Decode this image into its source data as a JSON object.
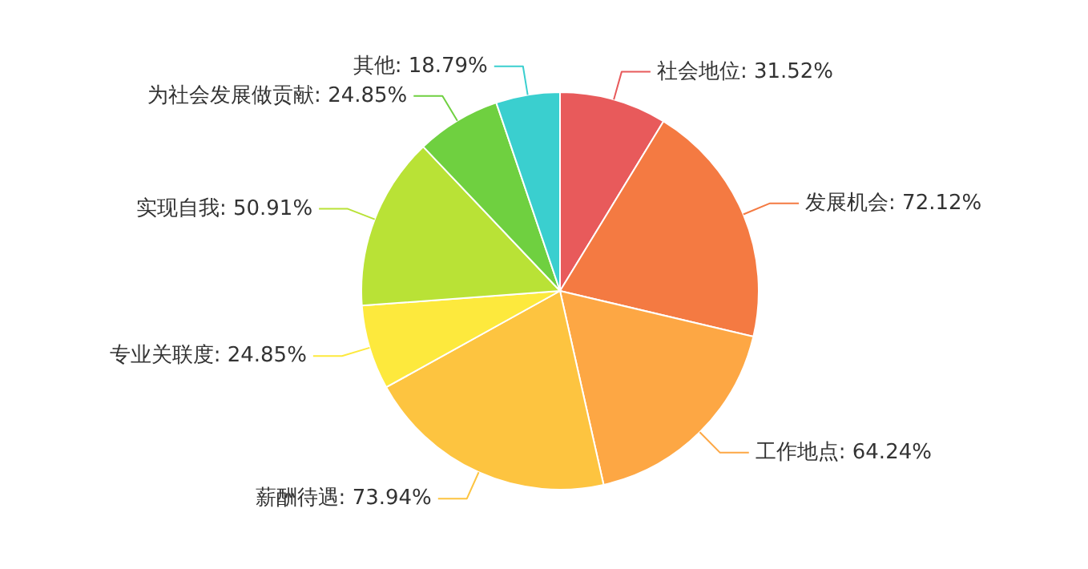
{
  "chart_data": {
    "type": "pie",
    "categories": [
      "社会地位",
      "发展机会",
      "工作地点",
      "薪酬待遇",
      "专业关联度",
      "实现自我",
      "为社会发展做贡献",
      "其他"
    ],
    "values": [
      31.52,
      72.12,
      64.24,
      73.94,
      24.85,
      50.91,
      24.85,
      18.79
    ],
    "value_labels": [
      "31.52%",
      "72.12%",
      "64.24%",
      "73.94%",
      "24.85%",
      "50.91%",
      "24.85%",
      "18.79%"
    ],
    "colors": [
      "#e85a5b",
      "#f47a42",
      "#fda744",
      "#fdc440",
      "#fde93d",
      "#b9e236",
      "#6fd040",
      "#3acfcf"
    ]
  }
}
